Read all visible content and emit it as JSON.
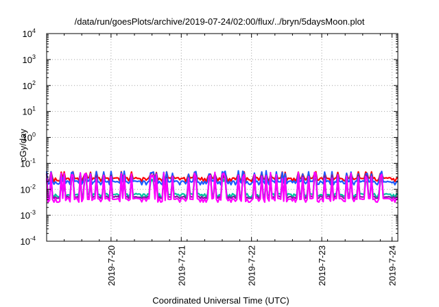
{
  "chart_data": {
    "type": "line",
    "title": "/data/run/goesPlots/archive/2019-07-24/02:00/flux/../bryn/5daysMoon.plot",
    "xlabel": "Coordinated Universal Time (UTC)",
    "ylabel": "cGy/day",
    "yscale": "log",
    "ylim": [
      0.0001,
      10000
    ],
    "xlim": [
      "2019-07-19 02:00",
      "2019-07-24 02:00"
    ],
    "y_ticks": [
      {
        "value": 0.0001,
        "base": "10",
        "exp": "-4"
      },
      {
        "value": 0.001,
        "base": "10",
        "exp": "-3"
      },
      {
        "value": 0.01,
        "base": "10",
        "exp": "-2"
      },
      {
        "value": 0.1,
        "base": "10",
        "exp": "-1"
      },
      {
        "value": 1,
        "base": "10",
        "exp": "0"
      },
      {
        "value": 10,
        "base": "10",
        "exp": "1"
      },
      {
        "value": 100,
        "base": "10",
        "exp": "2"
      },
      {
        "value": 1000,
        "base": "10",
        "exp": "3"
      },
      {
        "value": 10000,
        "base": "10",
        "exp": "4"
      }
    ],
    "x_ticks": [
      {
        "value": "2019-07-20 00:00",
        "label": "2019-7-20"
      },
      {
        "value": "2019-07-21 00:00",
        "label": "2019-7-21"
      },
      {
        "value": "2019-07-22 00:00",
        "label": "2019-7-22"
      },
      {
        "value": "2019-07-23 00:00",
        "label": "2019-7-23"
      },
      {
        "value": "2019-07-24 00:00",
        "label": "2019-7-24"
      }
    ],
    "grid": true,
    "legend": "none",
    "sampling_interval_hours": 0.5,
    "series": [
      {
        "color": "#ff0000",
        "baseline": 0.027,
        "spike_peak": 0.048,
        "spike_floor": 0.02
      },
      {
        "color": "#1a5cff",
        "baseline": 0.02,
        "spike_peak": 0.052,
        "spike_floor": 0.015
      },
      {
        "color": "#00c0a0",
        "baseline": 0.0065,
        "spike_peak": 0.03,
        "spike_floor": 0.005
      },
      {
        "color": "#7a1fa0",
        "baseline": 0.0052,
        "spike_peak": 0.04,
        "spike_floor": 0.0045
      },
      {
        "color": "#ff00ff",
        "baseline": 0.0043,
        "spike_peak": 0.045,
        "spike_floor": 0.0032
      }
    ]
  }
}
